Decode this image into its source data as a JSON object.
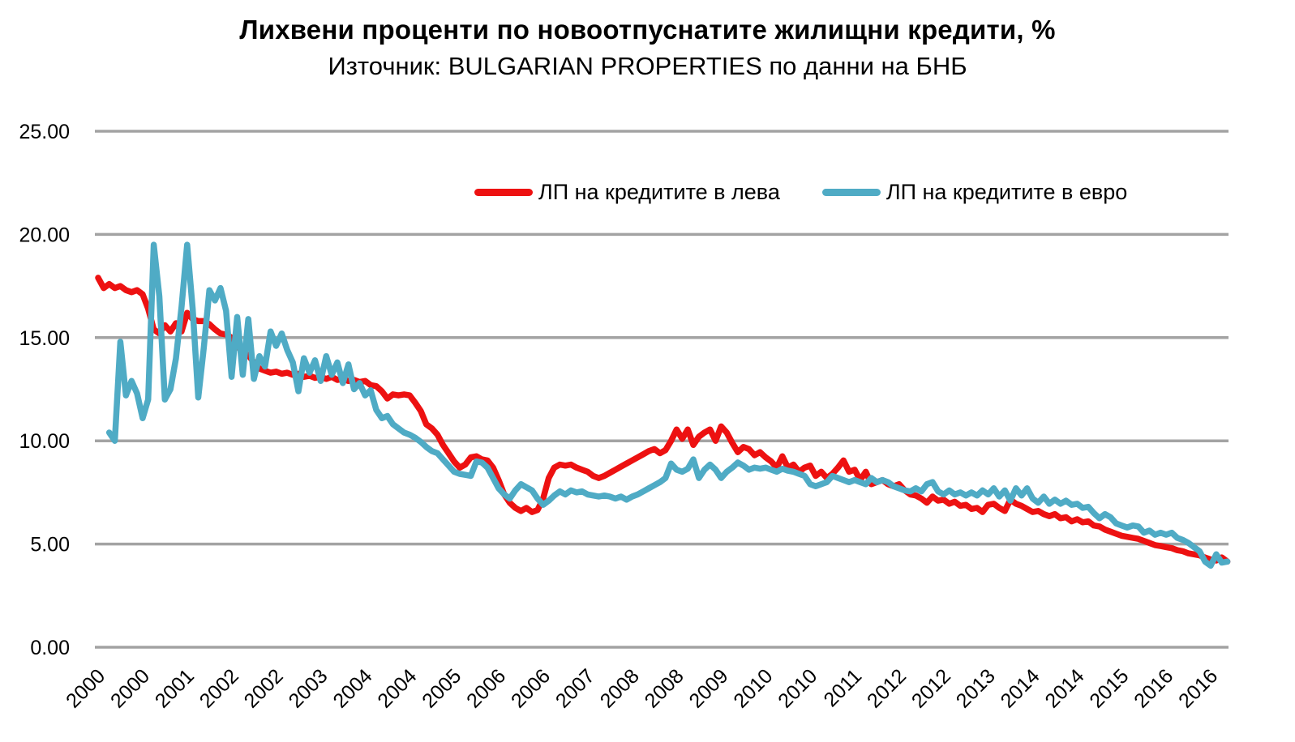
{
  "header": {
    "title": "Лихвени проценти по новоотпуснатите жилищни кредити, %",
    "subtitle": "Източник: BULGARIAN PROPERTIES по данни на БНБ"
  },
  "colors": {
    "background": "#ffffff",
    "gridline": "#a3a3a3",
    "text": "#000000",
    "series_leva": "#ed1111",
    "series_evro": "#4fabc5"
  },
  "chart_data": {
    "type": "line",
    "title": "Лихвени проценти по новоотпуснатите жилищни кредити, %",
    "subtitle": "Източник: BULGARIAN PROPERTIES по данни на БНБ",
    "grid": "horizontal",
    "legend_position": "top-center-inside",
    "y_axis": {
      "ylim": [
        0,
        25
      ],
      "ticks": [
        {
          "value": 25,
          "label": "25.00"
        },
        {
          "value": 20,
          "label": "20.00"
        },
        {
          "value": 15,
          "label": "15.00"
        },
        {
          "value": 10,
          "label": "10.00"
        },
        {
          "value": 5,
          "label": "5.00"
        },
        {
          "value": 0,
          "label": "0.00"
        }
      ]
    },
    "x_axis": {
      "unit": "monthly data points, Jan 2000 — Dec 2016",
      "points_per_tick": 8,
      "tick_labels": [
        "2000",
        "2000",
        "2001",
        "2002",
        "2002",
        "2003",
        "2004",
        "2004",
        "2005",
        "2006",
        "2006",
        "2007",
        "2008",
        "2008",
        "2009",
        "2010",
        "2010",
        "2011",
        "2012",
        "2012",
        "2013",
        "2014",
        "2014",
        "2015",
        "2016",
        "2016"
      ]
    },
    "series": [
      {
        "name": "ЛП на кредитите в лева",
        "color": "#ed1111",
        "values": [
          17.9,
          17.4,
          17.6,
          17.4,
          17.5,
          17.3,
          17.2,
          17.3,
          17.1,
          16.4,
          15.4,
          15.2,
          15.6,
          15.3,
          15.7,
          15.3,
          16.2,
          15.9,
          15.8,
          15.8,
          15.65,
          15.4,
          15.2,
          15.15,
          15.0,
          14.6,
          14.3,
          14.15,
          13.8,
          13.5,
          13.4,
          13.3,
          13.35,
          13.25,
          13.3,
          13.2,
          13.25,
          13.1,
          13.15,
          13.05,
          13.1,
          13.0,
          13.1,
          12.95,
          13.0,
          12.9,
          12.95,
          12.85,
          12.9,
          12.7,
          12.65,
          12.4,
          12.05,
          12.25,
          12.2,
          12.25,
          12.2,
          11.85,
          11.45,
          10.8,
          10.6,
          10.3,
          9.8,
          9.4,
          9.0,
          8.7,
          8.85,
          9.2,
          9.25,
          9.1,
          9.05,
          8.7,
          8.1,
          7.4,
          7.0,
          6.75,
          6.6,
          6.75,
          6.55,
          6.65,
          7.2,
          8.2,
          8.7,
          8.85,
          8.8,
          8.85,
          8.7,
          8.6,
          8.5,
          8.3,
          8.2,
          8.3,
          8.45,
          8.6,
          8.75,
          8.9,
          9.05,
          9.2,
          9.35,
          9.5,
          9.6,
          9.4,
          9.55,
          10.0,
          10.55,
          10.1,
          10.55,
          9.8,
          10.2,
          10.4,
          10.55,
          10.0,
          10.7,
          10.4,
          9.9,
          9.45,
          9.7,
          9.6,
          9.3,
          9.45,
          9.2,
          9.0,
          8.7,
          9.25,
          8.7,
          8.85,
          8.5,
          8.7,
          8.8,
          8.3,
          8.5,
          8.2,
          8.4,
          8.7,
          9.05,
          8.5,
          8.6,
          8.1,
          8.5,
          7.9,
          8.0,
          8.1,
          7.9,
          7.8,
          7.9,
          7.6,
          7.4,
          7.35,
          7.2,
          7.0,
          7.3,
          7.1,
          7.15,
          6.95,
          7.05,
          6.85,
          6.9,
          6.7,
          6.75,
          6.55,
          6.9,
          6.95,
          6.75,
          6.6,
          7.15,
          6.95,
          6.85,
          6.7,
          6.55,
          6.6,
          6.45,
          6.35,
          6.45,
          6.25,
          6.3,
          6.1,
          6.2,
          6.05,
          6.1,
          5.9,
          5.85,
          5.7,
          5.6,
          5.5,
          5.4,
          5.35,
          5.3,
          5.25,
          5.15,
          5.05,
          4.95,
          4.9,
          4.85,
          4.8,
          4.7,
          4.65,
          4.55,
          4.5,
          4.45,
          4.35,
          4.25,
          4.2,
          4.35,
          4.15
        ]
      },
      {
        "name": "ЛП на кредитите в евро",
        "color": "#4fabc5",
        "values": [
          null,
          null,
          10.4,
          10.0,
          14.8,
          12.2,
          12.9,
          12.3,
          11.1,
          12.0,
          19.5,
          17.0,
          12.0,
          12.5,
          14.0,
          16.5,
          19.5,
          16.4,
          12.1,
          14.5,
          17.3,
          16.8,
          17.4,
          16.3,
          13.1,
          16.0,
          13.2,
          15.9,
          13.0,
          14.1,
          13.6,
          15.3,
          14.6,
          15.2,
          14.4,
          13.8,
          12.4,
          14.0,
          13.3,
          13.9,
          12.9,
          14.1,
          13.2,
          13.8,
          12.8,
          13.7,
          12.5,
          12.8,
          12.2,
          12.45,
          11.5,
          11.1,
          11.2,
          10.8,
          10.6,
          10.4,
          10.3,
          10.15,
          9.95,
          9.7,
          9.5,
          9.4,
          9.1,
          8.8,
          8.5,
          8.4,
          8.35,
          8.3,
          9.0,
          8.95,
          8.7,
          8.2,
          7.7,
          7.4,
          7.2,
          7.6,
          7.9,
          7.75,
          7.6,
          7.2,
          6.9,
          7.1,
          7.35,
          7.55,
          7.4,
          7.6,
          7.5,
          7.55,
          7.4,
          7.35,
          7.3,
          7.35,
          7.3,
          7.2,
          7.3,
          7.15,
          7.3,
          7.4,
          7.55,
          7.7,
          7.85,
          8.0,
          8.2,
          8.9,
          8.6,
          8.5,
          8.65,
          9.1,
          8.2,
          8.6,
          8.85,
          8.6,
          8.2,
          8.5,
          8.7,
          8.95,
          8.8,
          8.6,
          8.7,
          8.65,
          8.7,
          8.6,
          8.5,
          8.65,
          8.55,
          8.5,
          8.4,
          8.3,
          7.9,
          7.8,
          7.9,
          8.0,
          8.3,
          8.2,
          8.1,
          8.0,
          8.1,
          8.0,
          7.9,
          8.2,
          8.0,
          8.1,
          8.0,
          7.8,
          7.7,
          7.6,
          7.55,
          7.7,
          7.55,
          7.9,
          8.0,
          7.55,
          7.4,
          7.6,
          7.4,
          7.5,
          7.35,
          7.5,
          7.35,
          7.6,
          7.4,
          7.7,
          7.3,
          7.6,
          7.1,
          7.7,
          7.35,
          7.7,
          7.2,
          7.0,
          7.3,
          6.95,
          7.15,
          6.95,
          7.1,
          6.9,
          6.95,
          6.75,
          6.8,
          6.5,
          6.25,
          6.45,
          6.3,
          6.0,
          5.9,
          5.8,
          5.9,
          5.85,
          5.55,
          5.65,
          5.45,
          5.55,
          5.45,
          5.55,
          5.3,
          5.2,
          5.05,
          4.85,
          4.65,
          4.15,
          3.95,
          4.5,
          4.1,
          4.15
        ]
      }
    ]
  }
}
